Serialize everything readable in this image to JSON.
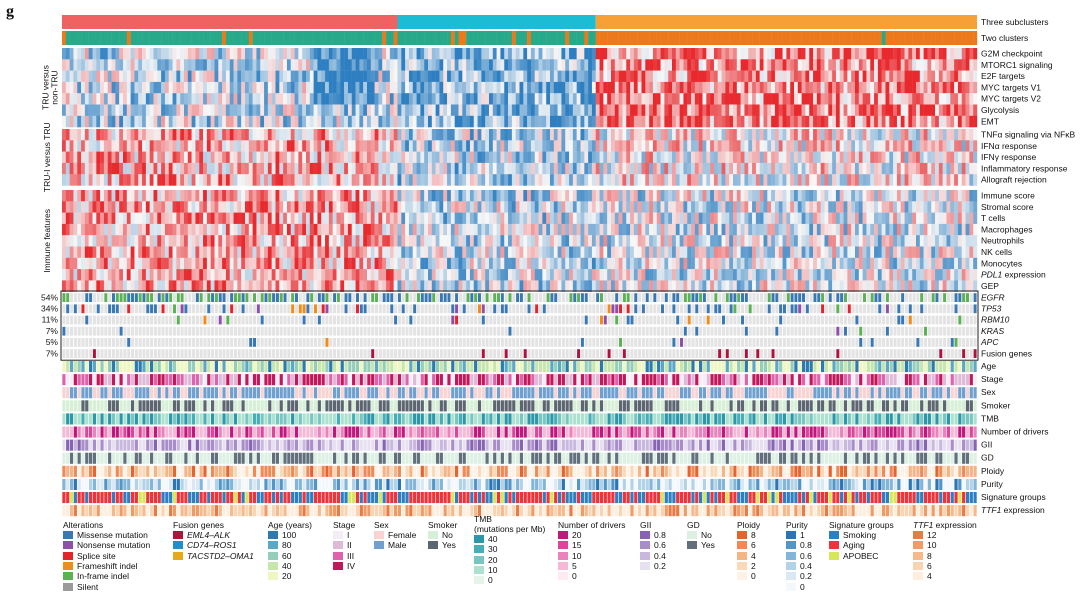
{
  "panel_letter": "g",
  "chart_data": {
    "type": "heatmap",
    "n_samples": 240,
    "subcluster_counts": [
      88,
      52,
      100
    ],
    "annotation_labels": [
      "Three subclusters",
      "Two clusters"
    ],
    "groups": [
      {
        "label": "TRU versus non-TRU",
        "rows": [
          "G2M checkpoint",
          "MTORC1 signaling",
          "E2F targets",
          "MYC targets V1",
          "MYC targets V2",
          "Glycolysis",
          "EMT"
        ]
      },
      {
        "label": "TRU-I versus TRU",
        "rows": [
          "TNFα signaling via NFκB",
          "IFNα response",
          "IFNγ response",
          "Inflammatory response",
          "Allograft rejection"
        ]
      },
      {
        "label": "Immune features",
        "rows": [
          "Immune score",
          "Stromal score",
          "T cells",
          "Macrophages",
          "Neutrophils",
          "NK cells",
          "Monocytes",
          "PDL1 expression",
          "GEP"
        ]
      }
    ],
    "mutation_rows": [
      {
        "gene": "EGFR",
        "pct": "54%"
      },
      {
        "gene": "TP53",
        "pct": "34%"
      },
      {
        "gene": "RBM10",
        "pct": "11%"
      },
      {
        "gene": "KRAS",
        "pct": "7%"
      },
      {
        "gene": "APC",
        "pct": "5%"
      },
      {
        "gene": "Fusion genes",
        "pct": "7%"
      }
    ],
    "clinical_rows": [
      "Age",
      "Stage",
      "Sex",
      "Smoker",
      "TMB",
      "Number of drivers",
      "GII",
      "GD",
      "Ploidy",
      "Purity",
      "Signature groups",
      "TTF1 expression"
    ],
    "colors": {
      "subclusters": [
        "#f06262",
        "#1bbcd4",
        "#f7a035"
      ],
      "two_clusters": [
        "#27a98a",
        "#ec7a1c"
      ],
      "heat_low": "#2e7fc1",
      "heat_mid": "#f7f7f7",
      "heat_high": "#e8292d",
      "missense": "#3a78b4",
      "nonsense": "#8e4fa8",
      "splice": "#e3242b",
      "frameshift": "#f28a1c",
      "inframe": "#5bb153",
      "silent": "#9b9b9b",
      "fusion": "#b0123b",
      "mut_bg": "#e3e3e3"
    }
  },
  "legend": {
    "alterations": {
      "title": "Alterations",
      "items": [
        "Missense mutation",
        "Nonsense mutation",
        "Splice site",
        "Frameshift indel",
        "In-frame indel",
        "Silent"
      ],
      "colors": [
        "#3a78b4",
        "#8e4fa8",
        "#e3242b",
        "#f28a1c",
        "#5bb153",
        "#9b9b9b"
      ]
    },
    "fusion": {
      "title": "Fusion genes",
      "items": [
        "EML4–ALK",
        "CD74–ROS1",
        "TACSTD2–OMA1"
      ],
      "colors": [
        "#b0123b",
        "#1f8fc9",
        "#e6a91c"
      ]
    },
    "age": {
      "title": "Age (years)",
      "items": [
        "100",
        "80",
        "60",
        "40",
        "20"
      ],
      "colors": [
        "#2b7bb0",
        "#5aa8c6",
        "#94cdb8",
        "#c7e6ad",
        "#eef7c2"
      ]
    },
    "stage": {
      "title": "Stage",
      "items": [
        "I",
        "II",
        "III",
        "IV"
      ],
      "colors": [
        "#f3eef5",
        "#deb9d8",
        "#df63ac",
        "#c2185b"
      ]
    },
    "sex": {
      "title": "Sex",
      "items": [
        "Female",
        "Male"
      ],
      "colors": [
        "#f9d2d2",
        "#6fa0cf"
      ]
    },
    "smoker": {
      "title": "Smoker",
      "items": [
        "No",
        "Yes"
      ],
      "colors": [
        "#d6efd6",
        "#5c6670"
      ]
    },
    "tmb": {
      "title": "TMB",
      "subtitle": "(mutations per Mb)",
      "items": [
        "40",
        "30",
        "20",
        "10",
        "0"
      ],
      "colors": [
        "#2b97a8",
        "#47aeb8",
        "#78c6c2",
        "#ace0cf",
        "#e4f4e8"
      ]
    },
    "drivers": {
      "title": "Number of drivers",
      "items": [
        "20",
        "15",
        "10",
        "5",
        "0"
      ],
      "colors": [
        "#c1177c",
        "#d9479a",
        "#ea82bb",
        "#f5b9d7",
        "#fdeaf2"
      ]
    },
    "gii": {
      "title": "GII",
      "items": [
        "0.8",
        "0.6",
        "0.4",
        "0.2"
      ],
      "colors": [
        "#8664b1",
        "#a98dc8",
        "#c9b8de",
        "#e7e0f0"
      ]
    },
    "gd": {
      "title": "GD",
      "items": [
        "No",
        "Yes"
      ],
      "colors": [
        "#dcf0e3",
        "#62707e"
      ]
    },
    "ploidy": {
      "title": "Ploidy",
      "items": [
        "8",
        "6",
        "4",
        "2",
        "0"
      ],
      "colors": [
        "#e6632e",
        "#ef8a55",
        "#f6b383",
        "#fbd8b8",
        "#fef2e6"
      ]
    },
    "purity": {
      "title": "Purity",
      "items": [
        "1",
        "0.8",
        "0.6",
        "0.4",
        "0.2",
        "0"
      ],
      "colors": [
        "#2b75b4",
        "#5295c7",
        "#82b5d8",
        "#b1d2e7",
        "#d9e8f3",
        "#f4f8fc"
      ]
    },
    "signature": {
      "title": "Signature groups",
      "items": [
        "Smoking",
        "Aging",
        "APOBEC"
      ],
      "colors": [
        "#2e7fc1",
        "#f0333b",
        "#d7e75a"
      ]
    },
    "ttf1": {
      "title": "TTF1 expression",
      "title_italic": "TTF1",
      "title_rest": " expression",
      "items": [
        "12",
        "10",
        "8",
        "6",
        "4"
      ],
      "colors": [
        "#e87a45",
        "#f09a66",
        "#f5b98c",
        "#f9d4b3",
        "#fdeedd"
      ]
    }
  }
}
